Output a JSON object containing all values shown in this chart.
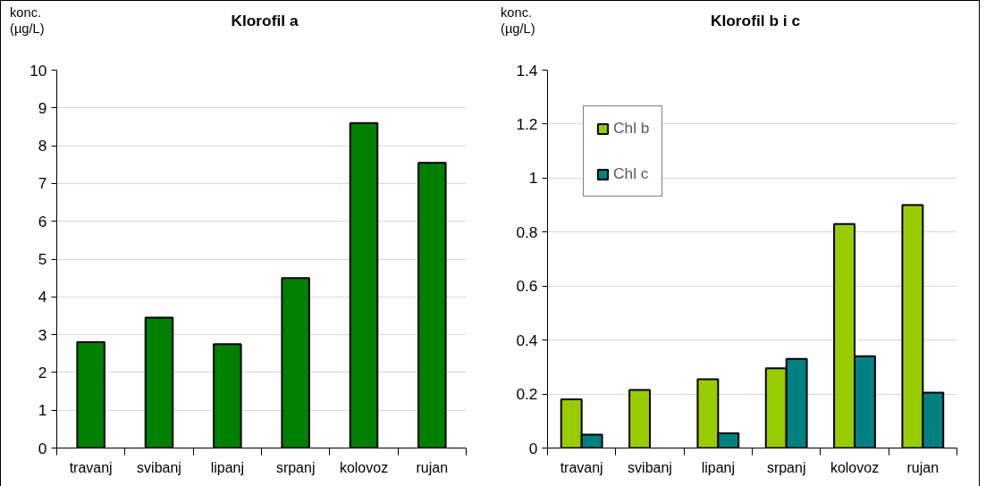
{
  "chart_data": [
    {
      "type": "bar",
      "title": "Klorofil a",
      "ylabel": "konc.\n(µg/L)",
      "categories": [
        "travanj",
        "svibanj",
        "lipanj",
        "srpanj",
        "kolovoz",
        "rujan"
      ],
      "series": [
        {
          "color": "#008000",
          "values": [
            2.8,
            3.45,
            2.75,
            4.5,
            8.6,
            7.55
          ]
        }
      ],
      "ylim": [
        0,
        10
      ],
      "yticks": [
        0,
        1,
        2,
        3,
        4,
        5,
        6,
        7,
        8,
        9,
        10
      ],
      "grid": "y",
      "legend": false
    },
    {
      "type": "bar",
      "title": "Klorofil b i c",
      "ylabel": "konc.\n(µg/L)",
      "categories": [
        "travanj",
        "svibanj",
        "lipanj",
        "srpanj",
        "kolovoz",
        "rujan"
      ],
      "series": [
        {
          "name": "Chl b",
          "color": "#99cc00",
          "values": [
            0.18,
            0.215,
            0.255,
            0.295,
            0.83,
            0.9
          ]
        },
        {
          "name": "Chl c",
          "color": "#008080",
          "values": [
            0.05,
            null,
            0.055,
            0.33,
            0.34,
            0.205
          ]
        }
      ],
      "ylim": [
        0,
        1.4
      ],
      "yticks": [
        0,
        0.2,
        0.4,
        0.6,
        0.8,
        1,
        1.2,
        1.4
      ],
      "grid": "y",
      "legend": "top left"
    }
  ]
}
